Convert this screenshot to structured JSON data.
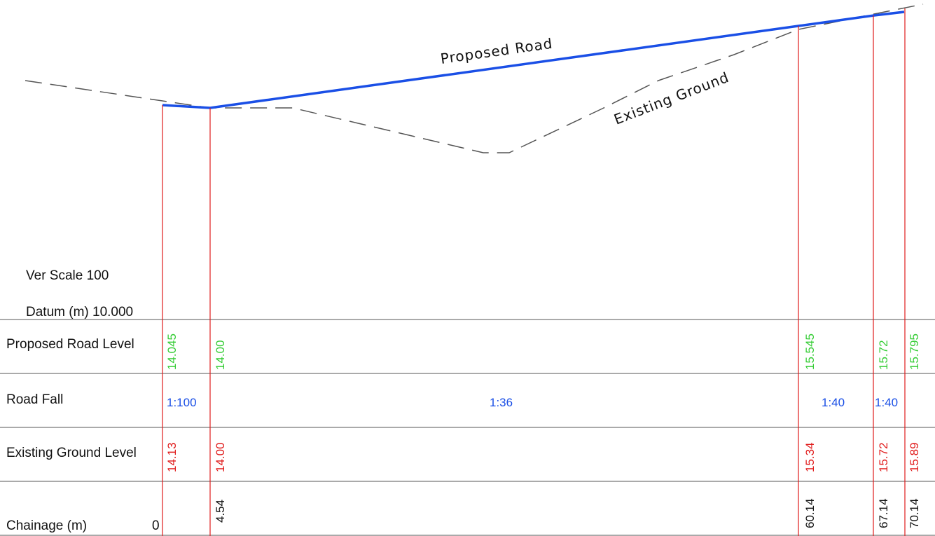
{
  "drawing": {
    "ver_scale_label": "Ver Scale 100",
    "datum_label": "Datum (m) 10.000",
    "proposed_road_label": "Proposed Road",
    "existing_ground_label": "Existing Ground",
    "colors": {
      "road": "#1a4fe6",
      "ground": "#555555",
      "section_line": "#e01a1a",
      "proposed_level_text": "#33cc33",
      "existing_level_text": "#e01a1a",
      "fall_text": "#1a4fe6",
      "chainage_text": "#111111",
      "grid": "#555555"
    }
  },
  "table": {
    "rows": {
      "proposed_level": "Proposed Road Level",
      "road_fall": "Road Fall",
      "existing_level": "Existing Ground Level",
      "chainage": "Chainage (m)"
    },
    "start_chainage": "0",
    "stations": [
      {
        "chainage": "",
        "proposed_level": "14.045",
        "existing_level": "14.13"
      },
      {
        "chainage": "4.54",
        "proposed_level": "14.00",
        "existing_level": "14.00"
      },
      {
        "chainage": "60.14",
        "proposed_level": "15.545",
        "existing_level": "15.34"
      },
      {
        "chainage": "67.14",
        "proposed_level": "15.72",
        "existing_level": "15.72"
      },
      {
        "chainage": "70.14",
        "proposed_level": "15.795",
        "existing_level": "15.89"
      }
    ],
    "falls": [
      "1:100",
      "1:36",
      "1:40",
      "1:40"
    ]
  }
}
